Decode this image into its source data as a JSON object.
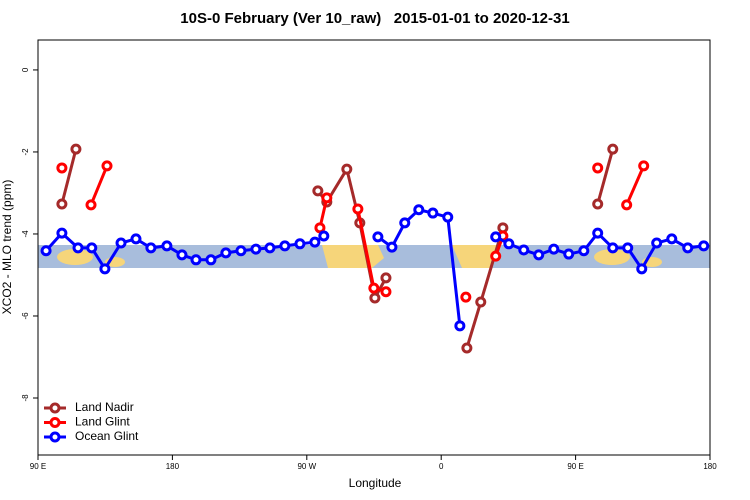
{
  "chart_data": {
    "type": "line",
    "title": "10S-0 February (Ver 10_raw)   2015-01-01 to 2020-12-31",
    "x_label": "Longitude",
    "y_label": "XCO2 - MLO trend (ppm)",
    "xlim": [
      90,
      540
    ],
    "ylim": [
      -9.39,
      0.73
    ],
    "xticks": [
      {
        "value": 90,
        "label": "90 E"
      },
      180,
      {
        "value": 270,
        "label": "90 W"
      },
      {
        "value": 360,
        "label": "0"
      },
      {
        "value": 450,
        "label": "90 E"
      },
      {
        "value": 540,
        "label": "180"
      }
    ],
    "yticks": [
      0,
      -2,
      -4,
      -6,
      -8
    ],
    "legend": "bottom-left",
    "series": [
      {
        "name": "Land Nadir",
        "color": "#a52a2a",
        "x": [
          106,
          115.4,
          null,
          277.4,
          283.4,
          296.8,
          305.5,
          315.6,
          323,
          null,
          377.2,
          386.5,
          401.3,
          null,
          464.8,
          474.9
        ],
        "values": [
          -3.27,
          -1.93,
          null,
          -2.95,
          -3.22,
          -2.42,
          -3.73,
          -5.56,
          -5.07,
          null,
          -6.78,
          -5.66,
          -3.85,
          null,
          -3.27,
          -1.93
        ]
      },
      {
        "name": "Land Glint",
        "color": "#ff0000",
        "x": [
          106,
          null,
          125.5,
          136.2,
          null,
          278.8,
          283.4,
          null,
          304.2,
          314.9,
          323,
          null,
          376.5,
          null,
          396.5,
          401.3,
          null,
          464.8,
          null,
          484.2,
          495.6
        ],
        "values": [
          -2.39,
          null,
          -3.29,
          -2.34,
          null,
          -3.85,
          -3.12,
          null,
          -3.39,
          -5.32,
          -5.41,
          null,
          -5.54,
          null,
          -4.54,
          -4.05,
          null,
          -2.39,
          null,
          -3.29,
          -2.34
        ]
      },
      {
        "name": "Ocean Glint",
        "color": "#0000ff",
        "x": [
          95.4,
          106,
          116.8,
          126,
          134.8,
          145.6,
          155.6,
          165.6,
          176.3,
          186.4,
          195.8,
          205.8,
          215.8,
          225.9,
          235.9,
          245.3,
          255.3,
          265.4,
          275.4,
          281.4,
          null,
          317.6,
          327,
          335.6,
          345,
          354.4,
          364.4,
          372.5,
          null,
          396.5,
          405.3,
          415.3,
          425.3,
          435.4,
          445.4,
          455.5,
          464.8,
          474.9,
          484.9,
          494.3,
          504.3,
          514.4,
          525.1,
          535.8
        ],
        "values": [
          -4.41,
          -3.98,
          -4.34,
          -4.34,
          -4.85,
          -4.22,
          -4.12,
          -4.34,
          -4.29,
          -4.51,
          -4.63,
          -4.63,
          -4.46,
          -4.41,
          -4.37,
          -4.34,
          -4.29,
          -4.24,
          -4.2,
          -4.05,
          null,
          -4.07,
          -4.32,
          -3.73,
          -3.41,
          -3.49,
          -3.59,
          -6.24,
          null,
          -4.07,
          -4.24,
          -4.39,
          -4.51,
          -4.37,
          -4.49,
          -4.41,
          -3.98,
          -4.34,
          -4.34,
          -4.85,
          -4.22,
          -4.12,
          -4.34,
          -4.29
        ]
      }
    ]
  }
}
